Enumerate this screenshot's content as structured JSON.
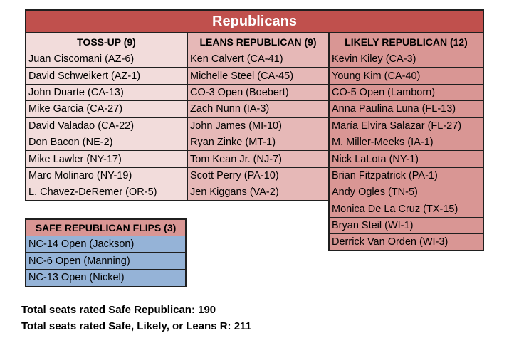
{
  "chart_data": {
    "type": "table",
    "title": "Republicans",
    "columns": [
      {
        "header": "TOSS-UP (9)",
        "rows": [
          "Juan Ciscomani (AZ-6)",
          "David Schweikert (AZ-1)",
          "John Duarte (CA-13)",
          "Mike Garcia (CA-27)",
          "David Valadao (CA-22)",
          "Don Bacon (NE-2)",
          "Mike Lawler (NY-17)",
          "Marc Molinaro (NY-19)",
          "L. Chavez-DeRemer (OR-5)"
        ]
      },
      {
        "header": "LEANS REPUBLICAN (9)",
        "rows": [
          "Ken Calvert (CA-41)",
          "Michelle Steel (CA-45)",
          "CO-3 Open (Boebert)",
          "Zach Nunn (IA-3)",
          "John James (MI-10)",
          "Ryan Zinke (MT-1)",
          "Tom Kean Jr. (NJ-7)",
          "Scott Perry (PA-10)",
          "Jen Kiggans (VA-2)"
        ]
      },
      {
        "header": "LIKELY REPUBLICAN (12)",
        "rows": [
          "Kevin Kiley (CA-3)",
          "Young Kim (CA-40)",
          "CO-5 Open (Lamborn)",
          "Anna Paulina Luna (FL-13)",
          "María Elvira Salazar (FL-27)",
          "M. Miller-Meeks (IA-1)",
          "Nick LaLota (NY-1)",
          "Brian Fitzpatrick (PA-1)",
          "Andy Ogles (TN-5)",
          "Monica De La Cruz (TX-15)",
          "Bryan Steil (WI-1)",
          "Derrick Van Orden (WI-3)"
        ]
      }
    ],
    "flips_table": {
      "header": "SAFE REPUBLICAN FLIPS (3)",
      "rows": [
        "NC-14 Open (Jackson)",
        "NC-6 Open (Manning)",
        "NC-13 Open (Nickel)"
      ]
    },
    "totals": [
      "Total seats rated Safe Republican: 190",
      "Total seats rated Safe, Likely, or Leans R: 211"
    ],
    "colors": {
      "title_bg": "#C0504D",
      "title_text": "#FFFFFF",
      "tossup_bg": "#F2DCDB",
      "leans_bg": "#E6B8B7",
      "likely_bg": "#D99694",
      "flips_header_bg": "#D99694",
      "flips_row_bg": "#95B3D7",
      "border": "#1F1F1F",
      "text": "#000000"
    }
  }
}
